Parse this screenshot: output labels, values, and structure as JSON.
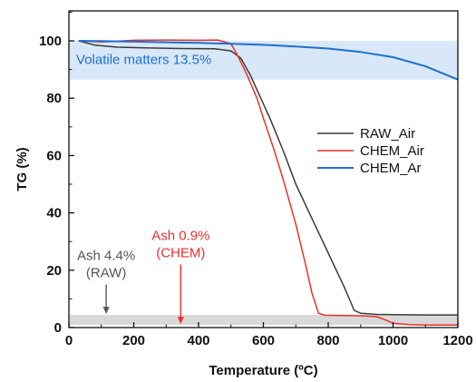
{
  "chart_data": {
    "type": "line",
    "xlabel": "Temperature (ºC)",
    "ylabel": "TG (%)",
    "xlim": [
      0,
      1200
    ],
    "ylim": [
      0,
      110
    ],
    "xticks": [
      0,
      200,
      400,
      600,
      800,
      1000,
      1200
    ],
    "yticks": [
      0,
      20,
      40,
      60,
      80,
      100
    ],
    "grid": false,
    "legend_position": "right",
    "series": [
      {
        "name": "RAW_Air",
        "color": "#3a3a3a",
        "x": [
          30,
          80,
          150,
          250,
          350,
          450,
          500,
          530,
          560,
          600,
          620,
          660,
          700,
          750,
          800,
          850,
          880,
          900,
          950,
          1000,
          1100,
          1200
        ],
        "y": [
          100,
          98.5,
          97.8,
          97.5,
          97.3,
          97.2,
          96.5,
          94,
          88,
          78,
          73,
          62,
          50,
          38,
          26,
          14,
          6,
          5,
          4.6,
          4.5,
          4.4,
          4.4
        ]
      },
      {
        "name": "CHEM_Air",
        "color": "#e8312f",
        "x": [
          30,
          100,
          200,
          300,
          400,
          460,
          500,
          520,
          550,
          580,
          600,
          630,
          660,
          700,
          730,
          750,
          770,
          790,
          850,
          900,
          950,
          980,
          1000,
          1050,
          1100,
          1200
        ],
        "y": [
          100,
          99.6,
          100.2,
          100.3,
          100.2,
          100.3,
          99,
          95,
          88,
          80,
          73,
          63,
          52,
          36,
          22,
          12,
          5,
          4.3,
          4.2,
          4.1,
          3.8,
          2.5,
          1.5,
          1.0,
          0.9,
          0.9
        ]
      },
      {
        "name": "CHEM_Ar",
        "color": "#1f6fd1",
        "x": [
          30,
          100,
          200,
          300,
          400,
          500,
          600,
          700,
          800,
          900,
          1000,
          1100,
          1200
        ],
        "y": [
          100,
          99.9,
          99.7,
          99.5,
          99.3,
          99.0,
          98.6,
          98.0,
          97.3,
          96.1,
          94.3,
          91.1,
          86.5
        ]
      }
    ],
    "bands": [
      {
        "label": "Volatile matters 13.5%",
        "y0": 86.5,
        "y1": 100,
        "fill": "#d9e8f8",
        "text_color": "#1f6fd1"
      },
      {
        "y0": 0.9,
        "y1": 4.4,
        "fill": "#d9d9d9"
      }
    ],
    "annotations": [
      {
        "label": "Ash 4.4%",
        "label2": "(RAW)",
        "x": 115,
        "y_from": 15,
        "y_to": 4.4,
        "color": "#555555"
      },
      {
        "label": "Ash 0.9%",
        "label2": "(CHEM)",
        "x": 345,
        "y_from": 22,
        "y_to": 0.9,
        "color": "#e8312f"
      }
    ]
  }
}
